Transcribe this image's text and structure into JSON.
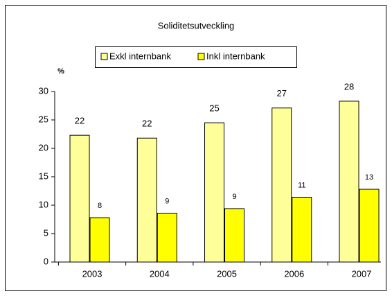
{
  "chart_data": {
    "type": "bar",
    "title": "Soliditetsutveckling",
    "y_label": "%",
    "categories": [
      "2003",
      "2004",
      "2005",
      "2006",
      "2007"
    ],
    "series": [
      {
        "name": "Exkl internbank",
        "color": "#ffff99",
        "values": [
          22.3,
          21.8,
          24.5,
          27.1,
          28.3
        ],
        "value_labels": [
          "22",
          "22",
          "25",
          "27",
          "28"
        ]
      },
      {
        "name": "Inkl internbank",
        "color": "#ffff00",
        "values": [
          7.8,
          8.6,
          9.4,
          11.4,
          12.8
        ],
        "value_labels": [
          "8",
          "9",
          "9",
          "11",
          "13"
        ]
      }
    ],
    "ylim": [
      0,
      30
    ],
    "yticks": [
      0,
      5,
      10,
      15,
      20,
      25,
      30
    ],
    "grid": false
  }
}
